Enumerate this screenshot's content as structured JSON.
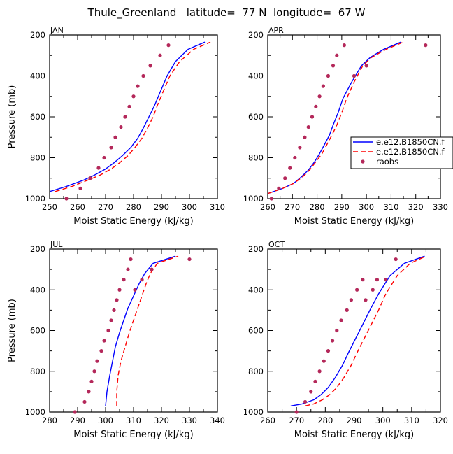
{
  "figure": {
    "title": "Thule_Greenland   latitude=  77 N  longitude=  67 W"
  },
  "colors": {
    "model_a": "#0000ff",
    "model_b": "#ff0000",
    "raobs": "#b4285a",
    "axis": "#000000"
  },
  "legend": {
    "placement": "right of APR panel",
    "entries": [
      {
        "label": "e.e12.B1850CN.f",
        "style": "solid",
        "color": "#0000ff"
      },
      {
        "label": "e.e12.B1850CN.f",
        "style": "dashed",
        "color": "#ff0000"
      },
      {
        "label": "raobs",
        "style": "dot",
        "color": "#b4285a"
      }
    ]
  },
  "chart_data": [
    {
      "type": "line",
      "panel": "JAN",
      "xlabel": "Moist Static Energy (kJ/kg)",
      "ylabel": "Pressure (mb)",
      "xlim": [
        250,
        310
      ],
      "ylim": [
        1000,
        200
      ],
      "xticks": [
        "250",
        "260",
        "270",
        "280",
        "290",
        "300",
        "310"
      ],
      "yticks": [
        "200",
        "400",
        "600",
        "800",
        "1000"
      ],
      "series": [
        {
          "style": "solid",
          "color": "#0000ff",
          "x": [
            250.0,
            256.0,
            262.0,
            266.0,
            270.0,
            273.0,
            276.0,
            279.0,
            281.5,
            283.5,
            285.5,
            287.5,
            289.5,
            292.0,
            295.0,
            299.5,
            305.5
          ],
          "y": [
            965,
            940,
            910,
            885,
            855,
            825,
            790,
            750,
            705,
            655,
            600,
            545,
            480,
            400,
            330,
            270,
            235
          ]
        },
        {
          "style": "dashed",
          "color": "#ff0000",
          "x": [
            252.0,
            258.0,
            263.5,
            268.0,
            272.0,
            275.0,
            278.0,
            280.5,
            283.0,
            285.0,
            287.0,
            288.5,
            290.5,
            293.0,
            296.5,
            301.5,
            307.5
          ],
          "y": [
            965,
            940,
            910,
            885,
            855,
            825,
            790,
            750,
            705,
            655,
            600,
            545,
            480,
            400,
            330,
            270,
            235
          ]
        }
      ],
      "raobs": {
        "x": [
          256.0,
          261.0,
          264.5,
          267.5,
          269.5,
          272.0,
          273.5,
          275.5,
          277.0,
          278.5,
          280.0,
          281.5,
          283.5,
          286.0,
          289.5,
          292.5
        ],
        "y": [
          1000,
          950,
          900,
          850,
          800,
          750,
          700,
          650,
          600,
          550,
          500,
          450,
          400,
          350,
          300,
          250
        ]
      }
    },
    {
      "type": "line",
      "panel": "APR",
      "xlabel": "Moist Static Energy (kJ/kg)",
      "ylabel": "Pressure (mb)",
      "xlim": [
        260,
        330
      ],
      "ylim": [
        1000,
        200
      ],
      "xticks": [
        "260",
        "270",
        "280",
        "290",
        "300",
        "310",
        "320",
        "330"
      ],
      "yticks": [
        "200",
        "400",
        "600",
        "800",
        "1000"
      ],
      "series": [
        {
          "style": "solid",
          "color": "#0000ff",
          "x": [
            260.0,
            266.0,
            270.5,
            273.5,
            276.5,
            279.0,
            281.0,
            283.0,
            285.0,
            286.5,
            288.5,
            290.5,
            294.0,
            298.0,
            301.5,
            307.0,
            314.0
          ],
          "y": [
            975,
            950,
            925,
            895,
            860,
            820,
            780,
            735,
            690,
            640,
            580,
            510,
            430,
            350,
            310,
            270,
            235
          ]
        },
        {
          "style": "dashed",
          "color": "#ff0000",
          "x": [
            260.0,
            266.0,
            270.5,
            274.0,
            277.0,
            279.5,
            282.0,
            284.0,
            286.0,
            288.0,
            290.0,
            292.0,
            295.0,
            298.5,
            302.0,
            308.0,
            315.0
          ],
          "y": [
            975,
            950,
            925,
            895,
            860,
            820,
            780,
            735,
            690,
            640,
            580,
            510,
            430,
            350,
            310,
            270,
            235
          ]
        }
      ],
      "raobs": {
        "x": [
          261.5,
          264.5,
          267.0,
          269.0,
          271.0,
          273.0,
          275.0,
          276.5,
          278.0,
          279.5,
          281.0,
          282.5,
          284.5,
          286.5,
          288.0,
          291.0,
          295.0,
          300.0,
          324.0
        ],
        "y": [
          1000,
          950,
          900,
          850,
          800,
          750,
          700,
          650,
          600,
          550,
          500,
          450,
          400,
          350,
          300,
          250,
          400,
          350,
          250
        ]
      }
    },
    {
      "type": "line",
      "panel": "JUL",
      "xlabel": "Moist Static Energy (kJ/kg)",
      "ylabel": "Pressure (mb)",
      "xlim": [
        280,
        340
      ],
      "ylim": [
        1000,
        200
      ],
      "xticks": [
        "280",
        "290",
        "300",
        "310",
        "320",
        "330",
        "340"
      ],
      "yticks": [
        "200",
        "400",
        "600",
        "800",
        "1000"
      ],
      "series": [
        {
          "style": "solid",
          "color": "#0000ff",
          "x": [
            300.0,
            300.5,
            301.5,
            302.5,
            303.5,
            305.0,
            306.5,
            308.0,
            310.0,
            312.0,
            314.0,
            317.0,
            325.0
          ],
          "y": [
            970,
            900,
            820,
            750,
            680,
            610,
            550,
            490,
            430,
            370,
            320,
            270,
            235
          ]
        },
        {
          "style": "dashed",
          "color": "#ff0000",
          "x": [
            304.0,
            304.0,
            304.5,
            305.5,
            307.0,
            308.5,
            310.0,
            311.5,
            313.0,
            314.5,
            316.0,
            318.5,
            326.0
          ],
          "y": [
            970,
            900,
            820,
            750,
            680,
            610,
            550,
            490,
            430,
            370,
            320,
            270,
            235
          ]
        }
      ],
      "raobs": {
        "x": [
          289.0,
          292.5,
          294.0,
          295.0,
          296.0,
          297.0,
          298.5,
          299.5,
          301.0,
          302.0,
          303.0,
          304.0,
          305.0,
          306.5,
          308.0,
          309.0,
          310.5,
          313.0,
          316.5,
          330.0
        ],
        "y": [
          1000,
          950,
          900,
          850,
          800,
          750,
          700,
          650,
          600,
          550,
          500,
          450,
          400,
          350,
          300,
          250,
          400,
          350,
          300,
          250
        ]
      }
    },
    {
      "type": "line",
      "panel": "OCT",
      "xlabel": "Moist Static Energy (kJ/kg)",
      "ylabel": "Pressure (mb)",
      "xlim": [
        260,
        320
      ],
      "ylim": [
        1000,
        200
      ],
      "xticks": [
        "260",
        "270",
        "280",
        "290",
        "300",
        "310",
        "320"
      ],
      "yticks": [
        "200",
        "400",
        "600",
        "800",
        "1000"
      ],
      "series": [
        {
          "style": "solid",
          "color": "#0000ff",
          "x": [
            268.0,
            272.0,
            276.0,
            278.5,
            281.0,
            283.5,
            286.0,
            288.0,
            290.5,
            293.0,
            295.5,
            298.5,
            302.5,
            307.5,
            314.5
          ],
          "y": [
            970,
            960,
            940,
            915,
            880,
            830,
            770,
            710,
            640,
            570,
            500,
            420,
            330,
            270,
            235
          ]
        },
        {
          "style": "dashed",
          "color": "#ff0000",
          "x": [
            273.0,
            276.0,
            279.0,
            281.5,
            284.0,
            286.5,
            289.0,
            291.0,
            293.5,
            296.0,
            298.5,
            301.0,
            305.0,
            309.5,
            315.0
          ],
          "y": [
            970,
            960,
            940,
            915,
            880,
            830,
            770,
            710,
            640,
            570,
            500,
            420,
            330,
            270,
            235
          ]
        }
      ],
      "raobs": {
        "x": [
          270.0,
          273.0,
          275.0,
          276.5,
          278.0,
          279.5,
          281.0,
          282.5,
          284.0,
          285.5,
          287.5,
          289.0,
          291.0,
          293.0,
          294.0,
          296.5,
          298.0,
          301.0,
          304.5
        ],
        "y": [
          1000,
          950,
          900,
          850,
          800,
          750,
          700,
          650,
          600,
          550,
          500,
          450,
          400,
          350,
          450,
          400,
          350,
          350,
          250
        ]
      }
    }
  ]
}
